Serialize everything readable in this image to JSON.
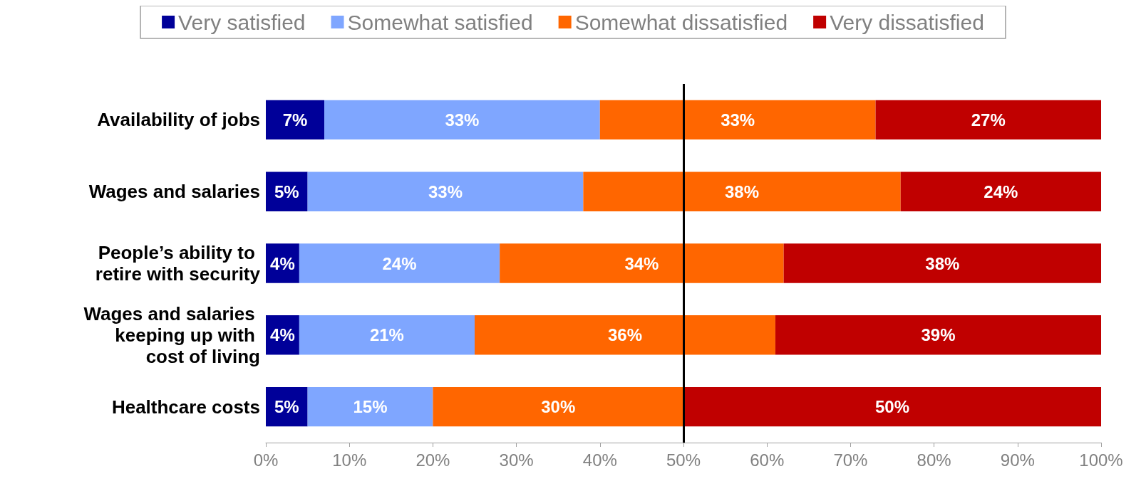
{
  "chart_data": {
    "type": "bar",
    "orientation": "horizontal",
    "stacked": true,
    "categories": [
      "Availability of jobs",
      "Wages and salaries",
      "People’s ability to retire with security",
      "Wages and salaries keeping up with cost of living",
      "Healthcare costs"
    ],
    "series": [
      {
        "name": "Very satisfied",
        "color": "#000099",
        "values": [
          7,
          5,
          4,
          4,
          5
        ],
        "value_labels": [
          "7%",
          "5%",
          "4%",
          "4%",
          "5%"
        ]
      },
      {
        "name": "Somewhat satisfied",
        "color": "#7fa6ff",
        "values": [
          33,
          33,
          24,
          21,
          15
        ],
        "value_labels": [
          "33%",
          "33%",
          "24%",
          "21%",
          "15%"
        ]
      },
      {
        "name": "Somewhat dissatisfied",
        "color": "#ff6600",
        "values": [
          33,
          38,
          34,
          36,
          30
        ],
        "value_labels": [
          "33%",
          "38%",
          "34%",
          "36%",
          "30%"
        ]
      },
      {
        "name": "Very dissatisfied",
        "color": "#c00000",
        "values": [
          27,
          24,
          38,
          39,
          50
        ],
        "value_labels": [
          "27%",
          "24%",
          "38%",
          "39%",
          "50%"
        ]
      }
    ],
    "xlim": [
      0,
      100
    ],
    "xticks": [
      {
        "value": 0,
        "label": "0%"
      },
      {
        "value": 10,
        "label": "10%"
      },
      {
        "value": 20,
        "label": "20%"
      },
      {
        "value": 30,
        "label": "30%"
      },
      {
        "value": 40,
        "label": "40%"
      },
      {
        "value": 50,
        "label": "50%"
      },
      {
        "value": 60,
        "label": "60%"
      },
      {
        "value": 70,
        "label": "70%"
      },
      {
        "value": 80,
        "label": "80%"
      },
      {
        "value": 90,
        "label": "90%"
      },
      {
        "value": 100,
        "label": "100%"
      }
    ],
    "ref_lines": [
      {
        "axis": "x",
        "value": 50,
        "color": "#000000"
      }
    ],
    "grid": false,
    "legend": "top"
  }
}
